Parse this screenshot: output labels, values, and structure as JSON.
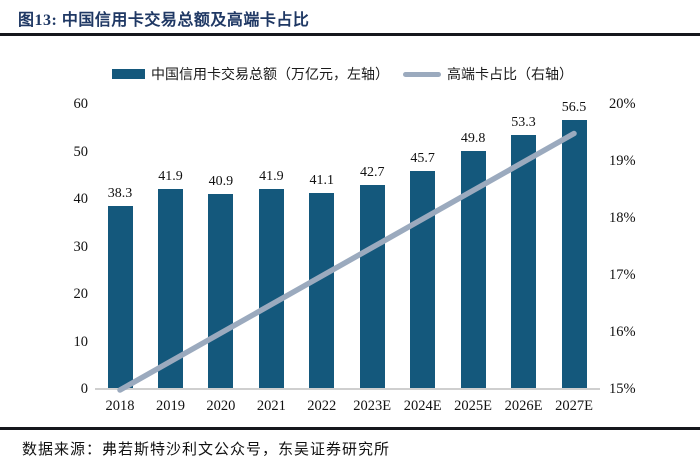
{
  "header": {
    "title": "图13:  中国信用卡交易总额及高端卡占比"
  },
  "legend": {
    "items": [
      {
        "label": "中国信用卡交易总额（万亿元，左轴）",
        "type": "bar"
      },
      {
        "label": "高端卡占比（右轴）",
        "type": "line"
      }
    ]
  },
  "colors": {
    "bar": "#14587C",
    "line": "#9BAABE",
    "title": "#1F3864",
    "rule": "#15171C",
    "axis_line": "#CFCFCF"
  },
  "chart_data": {
    "type": "bar",
    "title": "中国信用卡交易总额及高端卡占比",
    "categories": [
      "2018",
      "2019",
      "2020",
      "2021",
      "2022",
      "2023E",
      "2024E",
      "2025E",
      "2026E",
      "2027E"
    ],
    "series": [
      {
        "name": "中国信用卡交易总额（万亿元，左轴）",
        "type": "bar",
        "axis": "left",
        "values": [
          38.3,
          41.9,
          40.9,
          41.9,
          41.1,
          42.7,
          45.7,
          49.8,
          53.3,
          56.5
        ]
      },
      {
        "name": "高端卡占比（右轴）",
        "type": "line",
        "axis": "right",
        "values_percent": [
          15.0,
          15.5,
          16.0,
          16.5,
          17.0,
          17.5,
          18.0,
          18.5,
          19.0,
          19.5
        ]
      }
    ],
    "left_axis": {
      "ticks": [
        0,
        10,
        20,
        30,
        40,
        50,
        60
      ],
      "min": 0,
      "max": 60
    },
    "right_axis": {
      "ticks": [
        "15%",
        "16%",
        "17%",
        "18%",
        "19%",
        "20%"
      ],
      "min": 15,
      "max": 20
    },
    "grid": false,
    "legend_position": "top",
    "data_labels": true
  },
  "footer": {
    "source": "数据来源：弗若斯特沙利文公众号，东吴证券研究所"
  }
}
